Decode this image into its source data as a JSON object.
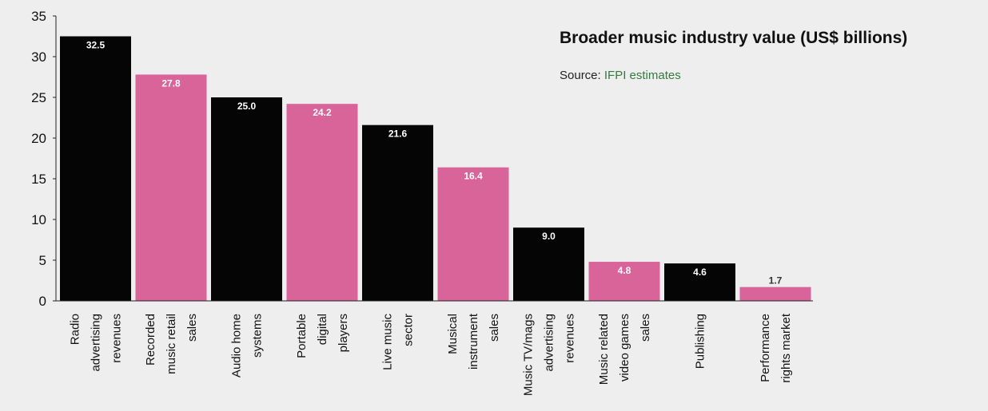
{
  "chart_data": {
    "type": "bar",
    "title": "Broader music industry value (US$ billions)",
    "source_label": "Source:",
    "source_name": "IFPI estimates",
    "xlabel": "",
    "ylabel": "",
    "ylim": [
      0,
      35
    ],
    "yticks": [
      0,
      5,
      10,
      15,
      20,
      25,
      30,
      35
    ],
    "grid": false,
    "legend": "none",
    "categories": [
      [
        "Radio",
        "advertising",
        "revenues"
      ],
      [
        "Recorded",
        "music retail",
        "sales"
      ],
      [
        "Audio home",
        "systems"
      ],
      [
        "Portable",
        "digital",
        "players"
      ],
      [
        "Live music",
        "sector"
      ],
      [
        "Musical",
        "instrument",
        "sales"
      ],
      [
        "Music TV/mags",
        "advertising",
        "revenues"
      ],
      [
        "Music related",
        "video games",
        "sales"
      ],
      [
        "Publishing"
      ],
      [
        "Performance",
        "rights market"
      ]
    ],
    "values": [
      32.5,
      27.8,
      25.0,
      24.2,
      21.6,
      16.4,
      9.0,
      4.8,
      4.6,
      1.7
    ],
    "value_labels": [
      "32.5",
      "27.8",
      "25.0",
      "24.2",
      "21.6",
      "16.4",
      "9.0",
      "4.8",
      "4.6",
      "1.7"
    ],
    "bar_colors": [
      "#050505",
      "#d9649a",
      "#050505",
      "#d9649a",
      "#050505",
      "#d9649a",
      "#050505",
      "#d9649a",
      "#050505",
      "#d9649a"
    ],
    "colors": {
      "black_bar": "#050505",
      "pink_bar": "#d9649a",
      "axis": "#222222",
      "label_on_dark": "#ffffff",
      "label_on_light": "#333333"
    }
  }
}
